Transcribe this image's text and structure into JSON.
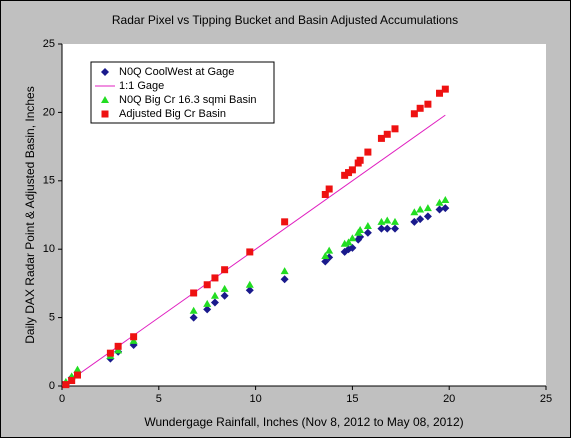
{
  "chart_data": {
    "type": "scatter",
    "title": "Radar Pixel vs Tipping Bucket and Basin Adjusted Accumulations",
    "x_label": "Wundergage Rainfall, Inches (Nov 8, 2012 to May 08, 2012)",
    "y_label": "Daily DAX Radar Point & Adjusted Basin, Inches",
    "xlim": [
      0,
      25
    ],
    "xticks": [
      0,
      5,
      10,
      15,
      20,
      25
    ],
    "ylim": [
      0,
      25
    ],
    "yticks": [
      0,
      5,
      10,
      15,
      20,
      25
    ],
    "grid": false,
    "legend": "top-left",
    "series": [
      {
        "name": "N0Q CoolWest at Gage",
        "color": "#1a1a8c",
        "marker": "diamond",
        "x": [
          0.2,
          0.5,
          0.8,
          2.5,
          2.9,
          3.7,
          6.8,
          7.5,
          7.9,
          8.4,
          9.7,
          11.5,
          13.6,
          13.8,
          14.6,
          14.8,
          15.0,
          15.3,
          15.4,
          15.8,
          16.5,
          16.8,
          17.2,
          18.2,
          18.5,
          18.9,
          19.5,
          19.8
        ],
        "values": [
          0.2,
          0.6,
          1.0,
          2.0,
          2.5,
          3.0,
          5.0,
          5.6,
          6.1,
          6.6,
          7.0,
          7.8,
          9.1,
          9.4,
          9.8,
          10.0,
          10.1,
          10.7,
          10.9,
          11.2,
          11.5,
          11.5,
          11.5,
          12.0,
          12.2,
          12.4,
          12.9,
          13.0
        ]
      },
      {
        "name": "1:1 Gage",
        "color": "#e020c0",
        "marker": "line",
        "x": [
          0,
          19.8
        ],
        "values": [
          0,
          19.8
        ]
      },
      {
        "name": "N0Q Big Cr 16.3 sqmi Basin",
        "color": "#22dd22",
        "marker": "triangle",
        "x": [
          0.2,
          0.5,
          0.8,
          2.5,
          2.9,
          3.7,
          6.8,
          7.5,
          7.9,
          8.4,
          9.7,
          11.5,
          13.6,
          13.8,
          14.6,
          14.8,
          15.0,
          15.3,
          15.4,
          15.8,
          16.5,
          16.8,
          17.2,
          18.2,
          18.5,
          18.9,
          19.5,
          19.8
        ],
        "values": [
          0.3,
          0.7,
          1.2,
          2.2,
          2.6,
          3.3,
          5.5,
          6.0,
          6.6,
          7.1,
          7.4,
          8.4,
          9.5,
          9.9,
          10.4,
          10.5,
          10.8,
          11.2,
          11.4,
          11.7,
          12.0,
          12.1,
          12.0,
          12.7,
          12.9,
          13.0,
          13.4,
          13.6
        ]
      },
      {
        "name": "Adjusted Big Cr Basin",
        "color": "#ee1111",
        "marker": "square",
        "x": [
          0.2,
          0.5,
          0.8,
          2.5,
          2.9,
          3.7,
          6.8,
          7.5,
          7.9,
          8.4,
          9.7,
          11.5,
          13.6,
          13.8,
          14.6,
          14.8,
          15.0,
          15.3,
          15.4,
          15.8,
          16.5,
          16.8,
          17.2,
          18.2,
          18.5,
          18.9,
          19.5,
          19.8
        ],
        "values": [
          0.1,
          0.4,
          0.8,
          2.4,
          2.9,
          3.6,
          6.8,
          7.4,
          7.9,
          8.5,
          9.8,
          12.0,
          14.0,
          14.4,
          15.4,
          15.6,
          15.8,
          16.3,
          16.5,
          17.1,
          18.1,
          18.4,
          18.8,
          19.9,
          20.3,
          20.6,
          21.4,
          21.7
        ]
      }
    ]
  }
}
